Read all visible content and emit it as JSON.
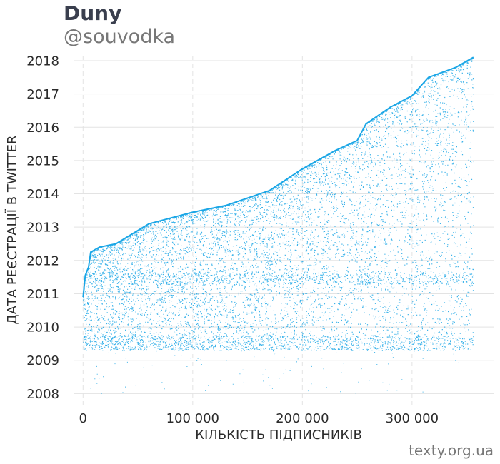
{
  "header": {
    "title": "Duny",
    "subtitle": "@souvodka"
  },
  "footer": {
    "credit": "texty.org.ua"
  },
  "colors": {
    "points": "#1aa6e6",
    "grid": "#e3e3e3",
    "title": "#3a3f4e",
    "muted": "#777777"
  },
  "chart_data": {
    "type": "scatter",
    "title": "Duny",
    "subtitle": "@souvodka",
    "xlabel": "КІЛЬКІСТЬ ПІДПИСНИКІВ",
    "ylabel": "ДАТА РЕЄСТРАЦІЇ В TWITTER",
    "xlim": [
      -8000,
      375000
    ],
    "ylim": [
      2007.6,
      2018.15
    ],
    "x_ticks": [
      {
        "value": 0,
        "label": "0"
      },
      {
        "value": 100000,
        "label": "100 000"
      },
      {
        "value": 200000,
        "label": "200 000"
      },
      {
        "value": 300000,
        "label": "300 000"
      }
    ],
    "y_ticks": [
      {
        "value": 2008,
        "label": "2008"
      },
      {
        "value": 2009,
        "label": "2009"
      },
      {
        "value": 2010,
        "label": "2010"
      },
      {
        "value": 2011,
        "label": "2011"
      },
      {
        "value": 2012,
        "label": "2012"
      },
      {
        "value": 2013,
        "label": "2013"
      },
      {
        "value": 2014,
        "label": "2014"
      },
      {
        "value": 2015,
        "label": "2015"
      },
      {
        "value": 2016,
        "label": "2016"
      },
      {
        "value": 2017,
        "label": "2017"
      },
      {
        "value": 2018,
        "label": "2018"
      }
    ],
    "grid": true,
    "series": [
      {
        "description_upper_envelope": "newest registration date among followers at each follower index",
        "upper_envelope": [
          {
            "x": 0,
            "y": 2010.9
          },
          {
            "x": 2000,
            "y": 2011.55
          },
          {
            "x": 5000,
            "y": 2011.8
          },
          {
            "x": 7000,
            "y": 2012.25
          },
          {
            "x": 15000,
            "y": 2012.4
          },
          {
            "x": 30000,
            "y": 2012.5
          },
          {
            "x": 60000,
            "y": 2013.1
          },
          {
            "x": 100000,
            "y": 2013.45
          },
          {
            "x": 130000,
            "y": 2013.65
          },
          {
            "x": 170000,
            "y": 2014.1
          },
          {
            "x": 200000,
            "y": 2014.75
          },
          {
            "x": 230000,
            "y": 2015.3
          },
          {
            "x": 250000,
            "y": 2015.6
          },
          {
            "x": 258000,
            "y": 2016.1
          },
          {
            "x": 280000,
            "y": 2016.6
          },
          {
            "x": 300000,
            "y": 2016.95
          },
          {
            "x": 315000,
            "y": 2017.5
          },
          {
            "x": 340000,
            "y": 2017.8
          },
          {
            "x": 356000,
            "y": 2018.1
          }
        ],
        "lower_bound": 2009.3,
        "x_max": 356000
      }
    ]
  }
}
